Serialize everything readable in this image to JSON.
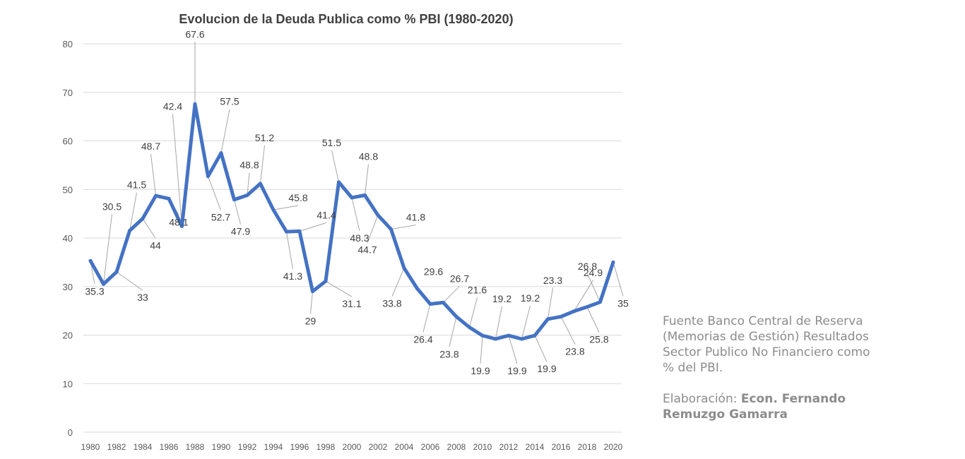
{
  "chart_data": {
    "type": "line",
    "title": "Evolucion de la Deuda Publica como  % PBI (1980-2020)",
    "xlabel": "",
    "ylabel": "",
    "ylim": [
      0,
      80
    ],
    "yticks": [
      0,
      10,
      20,
      30,
      40,
      50,
      60,
      70,
      80
    ],
    "xtick_labels": [
      "1980",
      "1982",
      "1984",
      "1986",
      "1988",
      "1990",
      "1992",
      "1994",
      "1996",
      "1998",
      "2000",
      "2002",
      "2004",
      "2006",
      "2008",
      "2010",
      "2012",
      "2014",
      "2016",
      "2018",
      "2020"
    ],
    "grid": true,
    "legend": "none",
    "line_color": "#4472c4",
    "series": [
      {
        "x": [
          1980,
          1981,
          1982,
          1983,
          1984,
          1985,
          1986,
          1987,
          1988,
          1989,
          1990,
          1991,
          1992,
          1993,
          1994,
          1995,
          1996,
          1997,
          1998,
          1999,
          2000,
          2001,
          2002,
          2003,
          2004,
          2005,
          2006,
          2007,
          2008,
          2009,
          2010,
          2011,
          2012,
          2013,
          2014,
          2015,
          2016,
          2017,
          2018,
          2019,
          2020
        ],
        "values": [
          35.3,
          30.5,
          33,
          41.5,
          44,
          48.7,
          48.1,
          42.4,
          67.6,
          52.7,
          57.5,
          47.9,
          48.8,
          51.2,
          45.8,
          41.3,
          41.4,
          29,
          31.1,
          51.5,
          48.3,
          48.8,
          44.7,
          41.8,
          33.8,
          29.6,
          26.4,
          26.7,
          23.8,
          21.6,
          19.9,
          19.2,
          19.9,
          19.2,
          19.9,
          23.3,
          23.8,
          24.9,
          25.8,
          26.8,
          35
        ],
        "labels": [
          "35.3",
          "30.5",
          "33",
          "41.5",
          "44",
          "48.7",
          "48.1",
          "42.4",
          "67.6",
          "52.7",
          "57.5",
          "47.9",
          "48.8",
          "51.2",
          "45.8",
          "41.3",
          "41.4",
          "29",
          "31.1",
          "51.5",
          "48.3",
          "48.8",
          "44.7",
          "41.8",
          "33.8",
          "29.6",
          "26.4",
          "26.7",
          "23.8",
          "21.6",
          "19.9",
          "19.2",
          "19.9",
          "19.2",
          "19.9",
          "23.3",
          "23.8",
          "24.9",
          "25.8",
          "26.8",
          "35"
        ]
      }
    ]
  },
  "source_note": {
    "text": "Fuente Banco Central de Reserva (Memorias de Gestión) Resultados Sector Publico No Financiero como % del PBI.",
    "credit_prefix": "Elaboración: ",
    "credit_author": "Econ. Fernando Remuzgo Gamarra"
  }
}
